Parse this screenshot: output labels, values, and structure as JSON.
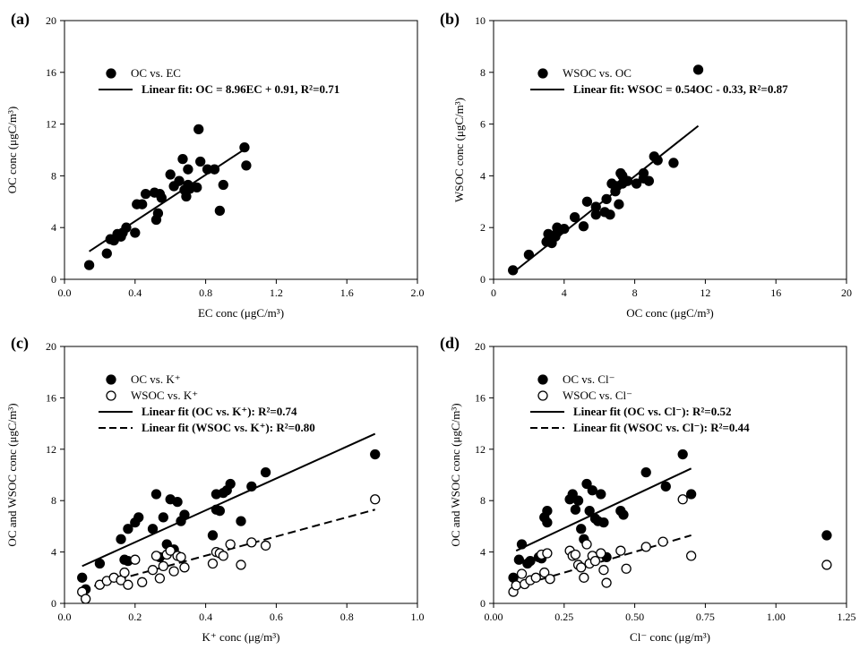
{
  "chart_data": [
    {
      "id": "a",
      "type": "scatter",
      "panel_label": "(a)",
      "xlabel": "EC conc (μgC/m³)",
      "ylabel": "OC conc (μgC/m³)",
      "xlim": [
        0,
        2.0
      ],
      "ylim": [
        0,
        20
      ],
      "xticks": [
        0,
        0.4,
        0.8,
        1.2,
        1.6,
        2.0
      ],
      "xtick_labels": [
        "0.0",
        "0.4",
        "0.8",
        "1.2",
        "1.6",
        "2.0"
      ],
      "yticks": [
        0,
        4,
        8,
        12,
        16,
        20
      ],
      "ytick_labels": [
        "0",
        "4",
        "8",
        "12",
        "16",
        "20"
      ],
      "series": [
        {
          "name": "OC vs. EC",
          "marker": "filled",
          "x": [
            0.14,
            0.24,
            0.26,
            0.28,
            0.3,
            0.32,
            0.33,
            0.35,
            0.4,
            0.41,
            0.44,
            0.46,
            0.51,
            0.52,
            0.53,
            0.54,
            0.55,
            0.6,
            0.62,
            0.65,
            0.67,
            0.68,
            0.69,
            0.7,
            0.7,
            0.71,
            0.75,
            0.76,
            0.77,
            0.81,
            0.85,
            0.88,
            0.9,
            1.02,
            1.03
          ],
          "y": [
            1.1,
            2.0,
            3.1,
            3.0,
            3.5,
            3.3,
            3.6,
            4.0,
            3.6,
            5.8,
            5.8,
            6.6,
            6.7,
            4.6,
            5.1,
            6.6,
            6.3,
            8.1,
            7.2,
            7.6,
            9.3,
            6.9,
            6.4,
            8.5,
            7.3,
            7.0,
            7.1,
            11.6,
            9.1,
            8.5,
            8.5,
            5.3,
            7.3,
            10.2,
            8.8
          ]
        }
      ],
      "fits": [
        {
          "label": "Linear fit: OC = 8.96EC + 0.91, R²=0.71",
          "style": "solid",
          "x": [
            0.14,
            1.02
          ],
          "y": [
            2.16,
            10.05
          ]
        }
      ]
    },
    {
      "id": "b",
      "type": "scatter",
      "panel_label": "(b)",
      "xlabel": "OC conc (μgC/m³)",
      "ylabel": "WSOC conc (μgC/m³)",
      "xlim": [
        0,
        20
      ],
      "ylim": [
        0,
        10
      ],
      "xticks": [
        0,
        4,
        8,
        12,
        16,
        20
      ],
      "xtick_labels": [
        "0",
        "4",
        "8",
        "12",
        "16",
        "20"
      ],
      "yticks": [
        0,
        2,
        4,
        6,
        8,
        10
      ],
      "ytick_labels": [
        "0",
        "2",
        "4",
        "6",
        "8",
        "10"
      ],
      "series": [
        {
          "name": "WSOC vs. OC",
          "marker": "filled",
          "x": [
            1.1,
            2.0,
            3.0,
            3.1,
            3.3,
            3.5,
            3.6,
            3.6,
            4.0,
            4.6,
            5.1,
            5.3,
            5.8,
            5.8,
            6.3,
            6.4,
            6.6,
            6.7,
            6.9,
            7.0,
            7.1,
            7.2,
            7.3,
            7.3,
            7.6,
            8.1,
            8.5,
            8.5,
            8.8,
            9.1,
            9.3,
            10.2,
            11.6
          ],
          "y": [
            0.35,
            0.95,
            1.45,
            1.75,
            1.4,
            1.65,
            2.0,
            1.8,
            1.95,
            2.4,
            2.05,
            3.0,
            2.5,
            2.8,
            2.6,
            3.1,
            2.5,
            3.7,
            3.4,
            3.6,
            2.9,
            4.1,
            4.0,
            3.7,
            3.8,
            3.7,
            4.1,
            3.9,
            3.8,
            4.75,
            4.6,
            4.5,
            8.1
          ]
        }
      ],
      "fits": [
        {
          "label": "Linear fit: WSOC = 0.54OC - 0.33, R²=0.87",
          "style": "solid",
          "x": [
            1.1,
            11.6
          ],
          "y": [
            0.26,
            5.93
          ]
        }
      ]
    },
    {
      "id": "c",
      "type": "scatter",
      "panel_label": "(c)",
      "xlabel": "K⁺ conc (μg/m³)",
      "ylabel": "OC and WSOC conc (μgC/m³)",
      "xlim": [
        0,
        1.0
      ],
      "ylim": [
        0,
        20
      ],
      "xticks": [
        0,
        0.2,
        0.4,
        0.6,
        0.8,
        1.0
      ],
      "xtick_labels": [
        "0.0",
        "0.2",
        "0.4",
        "0.6",
        "0.8",
        "1.0"
      ],
      "yticks": [
        0,
        4,
        8,
        12,
        16,
        20
      ],
      "ytick_labels": [
        "0",
        "4",
        "8",
        "12",
        "16",
        "20"
      ],
      "series": [
        {
          "name": "OC vs. K⁺",
          "marker": "filled",
          "x": [
            0.05,
            0.06,
            0.1,
            0.16,
            0.17,
            0.18,
            0.18,
            0.2,
            0.21,
            0.25,
            0.26,
            0.27,
            0.28,
            0.29,
            0.3,
            0.31,
            0.32,
            0.33,
            0.34,
            0.42,
            0.43,
            0.43,
            0.44,
            0.45,
            0.46,
            0.47,
            0.5,
            0.53,
            0.57,
            0.88
          ],
          "y": [
            2.0,
            1.1,
            3.1,
            5.0,
            3.4,
            5.8,
            3.3,
            6.3,
            6.7,
            5.8,
            8.5,
            3.6,
            6.7,
            4.6,
            8.1,
            4.2,
            7.9,
            6.4,
            6.9,
            5.3,
            7.3,
            8.5,
            7.2,
            8.6,
            8.8,
            9.3,
            6.4,
            9.1,
            10.2,
            11.6
          ]
        },
        {
          "name": "WSOC vs. K⁺",
          "marker": "open",
          "x": [
            0.05,
            0.06,
            0.1,
            0.12,
            0.14,
            0.16,
            0.17,
            0.18,
            0.2,
            0.22,
            0.25,
            0.26,
            0.27,
            0.28,
            0.29,
            0.3,
            0.31,
            0.32,
            0.33,
            0.34,
            0.42,
            0.43,
            0.44,
            0.45,
            0.47,
            0.5,
            0.53,
            0.57,
            0.88
          ],
          "y": [
            0.9,
            0.35,
            1.45,
            1.75,
            2.0,
            1.8,
            2.4,
            1.45,
            3.4,
            1.65,
            2.6,
            3.7,
            1.95,
            2.9,
            3.8,
            4.1,
            2.5,
            3.7,
            3.6,
            2.8,
            3.1,
            4.0,
            3.9,
            3.7,
            4.6,
            3.0,
            4.75,
            4.5,
            8.1
          ]
        }
      ],
      "fits": [
        {
          "label": "Linear fit (OC vs. K⁺): R²=0.74",
          "style": "solid",
          "x": [
            0.05,
            0.88
          ],
          "y": [
            2.9,
            13.2
          ]
        },
        {
          "label": "Linear fit (WSOC vs. K⁺): R²=0.80",
          "style": "dashed",
          "x": [
            0.05,
            0.88
          ],
          "y": [
            1.1,
            7.3
          ]
        }
      ]
    },
    {
      "id": "d",
      "type": "scatter",
      "panel_label": "(d)",
      "xlabel": "Cl⁻ conc (μg/m³)",
      "ylabel": "OC and WSOC conc (μgC/m³)",
      "xlim": [
        0,
        1.25
      ],
      "ylim": [
        0,
        20
      ],
      "xticks": [
        0,
        0.25,
        0.5,
        0.75,
        1.0,
        1.25
      ],
      "xtick_labels": [
        "0.00",
        "0.25",
        "0.50",
        "0.75",
        "1.00",
        "1.25"
      ],
      "yticks": [
        0,
        4,
        8,
        12,
        16,
        20
      ],
      "ytick_labels": [
        "0",
        "4",
        "8",
        "12",
        "16",
        "20"
      ],
      "series": [
        {
          "name": "OC vs. Cl⁻",
          "marker": "filled",
          "x": [
            0.07,
            0.09,
            0.1,
            0.12,
            0.13,
            0.16,
            0.17,
            0.18,
            0.19,
            0.19,
            0.27,
            0.28,
            0.29,
            0.3,
            0.31,
            0.32,
            0.33,
            0.34,
            0.35,
            0.36,
            0.37,
            0.38,
            0.39,
            0.4,
            0.45,
            0.46,
            0.54,
            0.61,
            0.67,
            0.7,
            1.18
          ],
          "y": [
            2.0,
            3.4,
            4.6,
            3.1,
            3.3,
            3.6,
            3.5,
            6.7,
            7.2,
            6.3,
            8.1,
            8.5,
            7.3,
            8.0,
            5.8,
            5.0,
            9.3,
            7.2,
            8.8,
            6.6,
            6.4,
            8.5,
            6.3,
            3.6,
            7.2,
            6.9,
            10.2,
            9.1,
            11.6,
            8.5,
            5.3
          ]
        },
        {
          "name": "WSOC vs. Cl⁻",
          "marker": "open",
          "x": [
            0.07,
            0.08,
            0.1,
            0.11,
            0.13,
            0.15,
            0.17,
            0.18,
            0.19,
            0.2,
            0.27,
            0.28,
            0.29,
            0.3,
            0.31,
            0.32,
            0.33,
            0.34,
            0.35,
            0.36,
            0.38,
            0.39,
            0.4,
            0.45,
            0.47,
            0.54,
            0.6,
            0.67,
            0.7,
            1.18
          ],
          "y": [
            0.9,
            1.4,
            2.3,
            1.5,
            1.8,
            2.0,
            3.8,
            2.4,
            3.9,
            1.9,
            4.1,
            3.7,
            3.8,
            3.0,
            2.8,
            2.0,
            4.6,
            3.1,
            3.7,
            3.3,
            3.9,
            2.6,
            1.6,
            4.1,
            2.7,
            4.4,
            4.8,
            8.1,
            3.7,
            3.0
          ]
        }
      ],
      "fits": [
        {
          "label": "Linear fit (OC vs. Cl⁻): R²=0.52",
          "style": "solid",
          "x": [
            0.08,
            0.7
          ],
          "y": [
            4.1,
            10.5
          ]
        },
        {
          "label": "Linear fit (WSOC vs. Cl⁻): R²=0.44",
          "style": "dashed",
          "x": [
            0.08,
            0.7
          ],
          "y": [
            1.3,
            5.3
          ]
        }
      ]
    }
  ]
}
